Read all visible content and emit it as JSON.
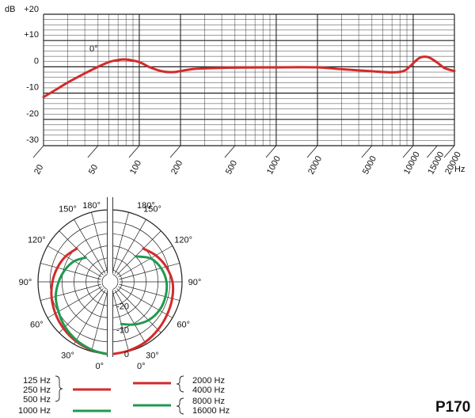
{
  "model": "P170",
  "chart_data": [
    {
      "type": "line",
      "title": "",
      "xlabel": "Hz",
      "ylabel": "dB",
      "xscale": "log",
      "xlim": [
        20,
        20000
      ],
      "ylim": [
        -30,
        20
      ],
      "y_ticks": [
        {
          "value": 20,
          "label": "+20"
        },
        {
          "value": 10,
          "label": "+10"
        },
        {
          "value": 0,
          "label": "0"
        },
        {
          "value": -10,
          "label": "-10"
        },
        {
          "value": -20,
          "label": "-20"
        },
        {
          "value": -30,
          "label": "-30"
        }
      ],
      "x_ticks": [
        {
          "value": 20,
          "label": "20"
        },
        {
          "value": 50,
          "label": "50"
        },
        {
          "value": 100,
          "label": "100"
        },
        {
          "value": 200,
          "label": "200"
        },
        {
          "value": 500,
          "label": "500"
        },
        {
          "value": 1000,
          "label": "1000"
        },
        {
          "value": 2000,
          "label": "2000"
        },
        {
          "value": 5000,
          "label": "5000"
        },
        {
          "value": 10000,
          "label": "10000"
        },
        {
          "value": 15000,
          "label": "15000"
        },
        {
          "value": 20000,
          "label": "20000"
        }
      ],
      "grid": true,
      "annotation": "0°",
      "color": "#d22b2b",
      "series": [
        {
          "x": [
            20,
            25,
            30,
            40,
            50,
            60,
            70,
            80,
            100,
            120,
            150,
            180,
            200,
            250,
            300,
            500,
            1000,
            2000,
            3000,
            5000,
            7000,
            8500,
            9500,
            10500,
            11500,
            13000,
            15000,
            17000,
            20000
          ],
          "y": [
            -11.5,
            -8.5,
            -6,
            -2.5,
            0,
            1.8,
            2.6,
            2.8,
            1.8,
            -0.2,
            -1.8,
            -2,
            -1.6,
            -0.8,
            -0.6,
            -0.3,
            -0.2,
            -0.2,
            -0.9,
            -1.7,
            -2.1,
            -1.6,
            0.2,
            2.4,
            3.7,
            3.6,
            1.6,
            -0.5,
            -1.6
          ]
        }
      ]
    },
    {
      "type": "polar",
      "rings_db": [
        0,
        -5,
        -10,
        -15,
        -20,
        -25,
        -30
      ],
      "ring_labels": [
        {
          "value": 0,
          "label": "0"
        },
        {
          "value": -10,
          "label": "-10"
        },
        {
          "value": -20,
          "label": "-20"
        }
      ],
      "angle_labels": [
        {
          "angle": 0,
          "label": "0°"
        },
        {
          "angle": 30,
          "label": "30°"
        },
        {
          "angle": 60,
          "label": "60°"
        },
        {
          "angle": 90,
          "label": "90°"
        },
        {
          "angle": 120,
          "label": "120°"
        },
        {
          "angle": 150,
          "label": "150°"
        },
        {
          "angle": 180,
          "label": "180°"
        }
      ],
      "series": [
        {
          "name": "125 Hz, 250 Hz, 500 Hz",
          "side": "left",
          "color": "#d22b2b",
          "angles": [
            0,
            15,
            30,
            45,
            60,
            75,
            90,
            105,
            120,
            135
          ],
          "levels": [
            0,
            -0.5,
            -1.5,
            -2.6,
            -3.7,
            -4.8,
            -6,
            -7.3,
            -8.7,
            -10.4
          ]
        },
        {
          "name": "1000 Hz",
          "side": "left",
          "color": "#1f9a4f",
          "angles": [
            0,
            15,
            30,
            45,
            60,
            75,
            90,
            105,
            120,
            135
          ],
          "levels": [
            0,
            -0.7,
            -2,
            -3.5,
            -5.2,
            -6.6,
            -8.6,
            -10.6,
            -12.8,
            -15.7
          ]
        },
        {
          "name": "2000 Hz, 4000 Hz",
          "side": "right",
          "color": "#d22b2b",
          "angles": [
            0,
            15,
            30,
            45,
            60,
            75,
            90,
            105,
            120,
            135
          ],
          "levels": [
            0,
            -0.3,
            -0.9,
            -1.8,
            -2.6,
            -3.2,
            -4,
            -5.8,
            -8,
            -10.4
          ]
        },
        {
          "name": "8000 Hz, 16000 Hz",
          "side": "right",
          "color": "#1f9a4f",
          "angles": [
            15,
            30,
            45,
            60,
            75,
            90,
            105,
            120,
            135
          ],
          "levels": [
            -11.8,
            -9.5,
            -7.4,
            -6.3,
            -6.1,
            -6.5,
            -8,
            -10.5,
            -15
          ]
        }
      ],
      "legend": {
        "left": {
          "red": [
            "125 Hz",
            "250 Hz",
            "500 Hz"
          ],
          "green": [
            "1000 Hz"
          ]
        },
        "right": {
          "red": [
            "2000 Hz",
            "4000 Hz"
          ],
          "green": [
            "8000 Hz",
            "16000 Hz"
          ]
        }
      }
    }
  ]
}
